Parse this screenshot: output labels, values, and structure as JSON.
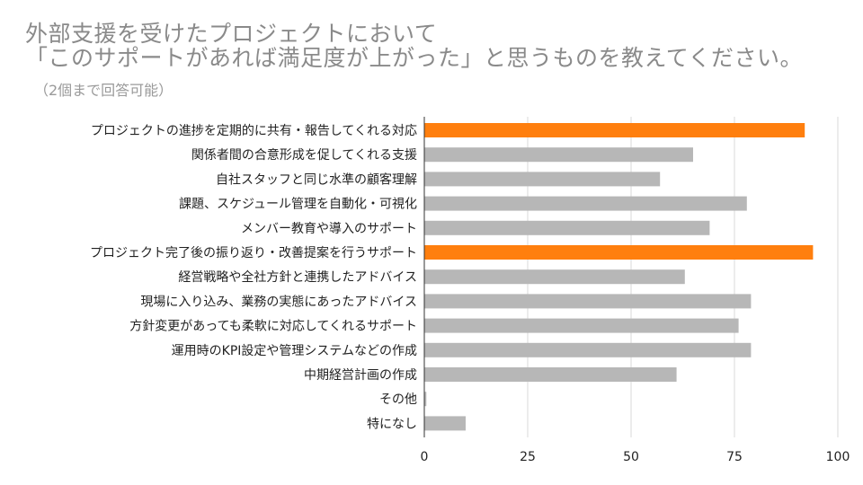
{
  "title_line1": "外部支援を受けたプロジェクトにおいて",
  "title_line2": "「このサポートがあれば満足度が上がった」と思うものを教えてください。",
  "subtitle": "（2個まで回答可能）",
  "colors": {
    "highlight": "#ff7f0e",
    "default": "#b7b7b7",
    "grid": "#d9d9d9"
  },
  "chart_data": {
    "type": "bar",
    "orientation": "horizontal",
    "title": "外部支援を受けたプロジェクトにおいて「このサポートがあれば満足度が上がった」と思うものを教えてください。",
    "subtitle": "（2個まで回答可能）",
    "xlim": [
      0,
      100
    ],
    "xticks": [
      0,
      25,
      50,
      75,
      100
    ],
    "categories": [
      "プロジェクトの進捗を定期的に共有・報告してくれる対応",
      "関係者間の合意形成を促してくれる支援",
      "自社スタッフと同じ水準の顧客理解",
      "課題、スケジュール管理を自動化・可視化",
      "メンバー教育や導入のサポート",
      "プロジェクト完了後の振り返り・改善提案を行うサポート",
      "経営戦略や全社方針と連携したアドバイス",
      "現場に入り込み、業務の実態にあったアドバイス",
      "方針変更があっても柔軟に対応してくれるサポート",
      "運用時のKPI設定や管理システムなどの作成",
      "中期経営計画の作成",
      "その他",
      "特になし"
    ],
    "values": [
      92,
      65,
      57,
      78,
      69,
      94,
      63,
      79,
      76,
      79,
      61,
      0.5,
      10
    ],
    "highlighted": [
      true,
      false,
      false,
      false,
      false,
      true,
      false,
      false,
      false,
      false,
      false,
      false,
      false
    ],
    "grid": true
  }
}
